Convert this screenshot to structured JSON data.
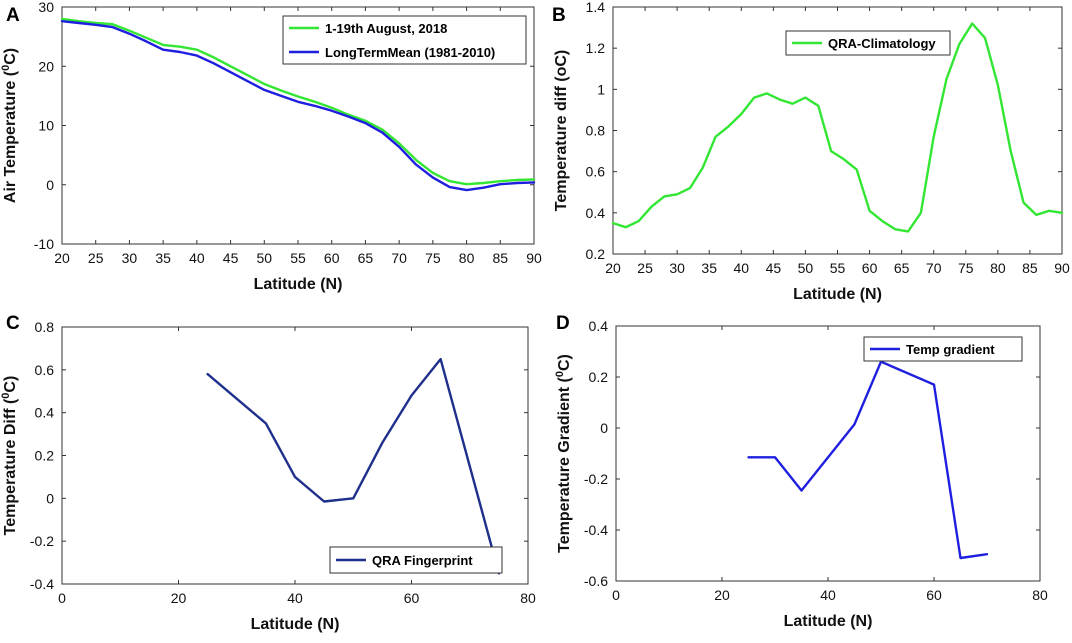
{
  "chart_data": [
    {
      "panel_label": "A",
      "type": "line",
      "title": "",
      "xlabel": "Latitude (N)",
      "ylabel": "Air Temperature (",
      "ylabel_sup": "0",
      "ylabel_tail": "C)",
      "xlim": [
        20,
        90
      ],
      "ylim": [
        -10,
        30
      ],
      "xticks": [
        20,
        25,
        30,
        35,
        40,
        45,
        50,
        55,
        60,
        65,
        70,
        75,
        80,
        85,
        90
      ],
      "yticks": [
        -10,
        0,
        10,
        20,
        30
      ],
      "legend_position": "top-right",
      "series": [
        {
          "name": "1-19th August, 2018",
          "color": "#33e633",
          "x": [
            20,
            22.5,
            25,
            27.5,
            30,
            32.5,
            35,
            37.5,
            40,
            42.5,
            45,
            47.5,
            50,
            52.5,
            55,
            57.5,
            60,
            62.5,
            65,
            67.5,
            70,
            72.5,
            75,
            77.5,
            80,
            82.5,
            85,
            87.5,
            90
          ],
          "y": [
            28.0,
            27.6,
            27.3,
            27.1,
            26.0,
            24.8,
            23.6,
            23.3,
            22.8,
            21.5,
            20.0,
            18.5,
            17.0,
            15.9,
            14.9,
            14.0,
            13.0,
            11.8,
            10.8,
            9.3,
            7.0,
            4.2,
            2.0,
            0.6,
            0.1,
            0.3,
            0.6,
            0.8,
            0.9
          ]
        },
        {
          "name": "LongTermMean (1981-2010)",
          "color": "#1f1fe0",
          "x": [
            20,
            22.5,
            25,
            27.5,
            30,
            32.5,
            35,
            37.5,
            40,
            42.5,
            45,
            47.5,
            50,
            52.5,
            55,
            57.5,
            60,
            62.5,
            65,
            67.5,
            70,
            72.5,
            75,
            77.5,
            80,
            82.5,
            85,
            87.5,
            90
          ],
          "y": [
            27.6,
            27.3,
            27.0,
            26.6,
            25.5,
            24.2,
            22.8,
            22.4,
            21.8,
            20.5,
            19.0,
            17.5,
            16.0,
            15.0,
            14.0,
            13.3,
            12.5,
            11.5,
            10.4,
            8.8,
            6.4,
            3.4,
            1.2,
            -0.4,
            -0.9,
            -0.5,
            0.1,
            0.3,
            0.4
          ]
        }
      ]
    },
    {
      "panel_label": "B",
      "type": "line",
      "title": "",
      "xlabel": "Latitude (N)",
      "ylabel": "Temperature diff (oC)",
      "xlim": [
        20,
        90
      ],
      "ylim": [
        0.2,
        1.4
      ],
      "xticks": [
        20,
        25,
        30,
        35,
        40,
        45,
        50,
        55,
        60,
        65,
        70,
        75,
        80,
        85,
        90
      ],
      "yticks": [
        0.2,
        0.4,
        0.6,
        0.8,
        1,
        1.2,
        1.4
      ],
      "legend_position": "top-right",
      "series": [
        {
          "name": "QRA-Climatology",
          "color": "#33e633",
          "x": [
            20,
            22,
            24,
            26,
            28,
            30,
            32,
            34,
            36,
            38,
            40,
            42,
            44,
            46,
            48,
            50,
            52,
            54,
            56,
            58,
            60,
            62,
            64,
            66,
            68,
            70,
            72,
            74,
            76,
            78,
            80,
            82,
            84,
            86,
            88,
            90
          ],
          "y": [
            0.35,
            0.33,
            0.36,
            0.43,
            0.48,
            0.49,
            0.52,
            0.62,
            0.77,
            0.82,
            0.88,
            0.96,
            0.98,
            0.95,
            0.93,
            0.96,
            0.92,
            0.7,
            0.66,
            0.61,
            0.41,
            0.36,
            0.32,
            0.31,
            0.4,
            0.77,
            1.05,
            1.22,
            1.32,
            1.25,
            1.02,
            0.7,
            0.45,
            0.39,
            0.41,
            0.4
          ]
        }
      ]
    },
    {
      "panel_label": "C",
      "type": "line",
      "title": "",
      "xlabel": "Latitude (N)",
      "ylabel": "Temperature Diff (",
      "ylabel_sup": "0",
      "ylabel_tail": "C)",
      "xlim": [
        0,
        80
      ],
      "ylim": [
        -0.4,
        0.8
      ],
      "xticks": [
        0,
        20,
        40,
        60,
        80
      ],
      "yticks": [
        -0.4,
        -0.2,
        0,
        0.2,
        0.4,
        0.6,
        0.8
      ],
      "legend_position": "bottom-right",
      "series": [
        {
          "name": "QRA Fingerprint",
          "color": "#1f2f8c",
          "x": [
            25,
            35,
            40,
            45,
            50,
            55,
            60,
            65,
            75
          ],
          "y": [
            0.58,
            0.35,
            0.1,
            -0.015,
            0.0,
            0.26,
            0.48,
            0.65,
            -0.35
          ]
        }
      ]
    },
    {
      "panel_label": "D",
      "type": "line",
      "title": "",
      "xlabel": "Latitude (N)",
      "ylabel": "Temperature Gradient (",
      "ylabel_sup": "0",
      "ylabel_tail": "C)",
      "xlim": [
        0,
        80
      ],
      "ylim": [
        -0.6,
        0.4
      ],
      "xticks": [
        0,
        20,
        40,
        60,
        80
      ],
      "yticks": [
        -0.6,
        -0.4,
        -0.2,
        0,
        0.2,
        0.4
      ],
      "legend_position": "top-right",
      "series": [
        {
          "name": "Temp gradient",
          "color": "#1f1fe0",
          "x": [
            25,
            30,
            35,
            45,
            50,
            60,
            65,
            70
          ],
          "y": [
            -0.115,
            -0.115,
            -0.245,
            0.015,
            0.26,
            0.17,
            -0.51,
            -0.495
          ]
        }
      ]
    }
  ]
}
